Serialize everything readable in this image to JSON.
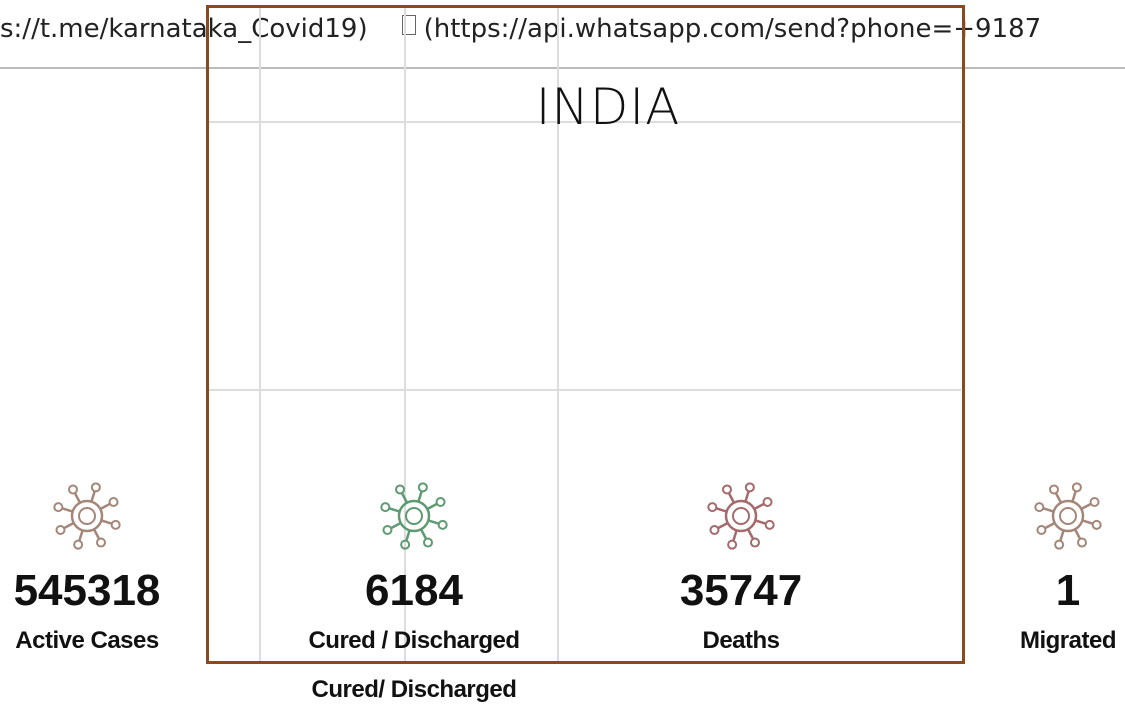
{
  "header": {
    "telegram_link": "s://t.me/karnataka_Covid19)",
    "whatsapp_link": "(https://api.whatsapp.com/send?phone=+9187"
  },
  "title": "INDIA",
  "stats": [
    {
      "value": "545318",
      "label": "Active Cases",
      "icon_color": "#a5877a"
    },
    {
      "value": "6184",
      "label": "Cured / Discharged",
      "icon_color": "#5e9a72"
    },
    {
      "value": "35747",
      "label": "Deaths",
      "icon_color": "#a46a6c"
    },
    {
      "value": "1",
      "label": "Migrated",
      "icon_color": "#a5877a"
    }
  ],
  "extra_label": "Cured/ Discharged"
}
